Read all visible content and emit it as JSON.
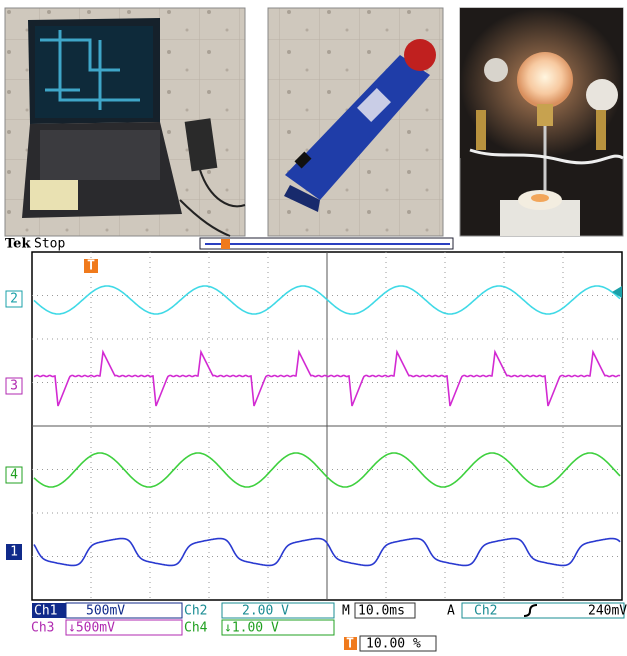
{
  "header": {
    "brand": "Tek",
    "status": "Stop"
  },
  "markers": {
    "trigger": "T",
    "ch2": "2",
    "ch3": "3",
    "ch4": "4",
    "ch1": "1"
  },
  "readouts": {
    "ch1": {
      "label": "Ch1",
      "scale": "500mV"
    },
    "ch2": {
      "label": "Ch2",
      "scale": "2.00 V"
    },
    "ch3": {
      "label": "Ch3",
      "scale": "↓500mV"
    },
    "ch4": {
      "label": "Ch4",
      "scale": "↓1.00 V"
    },
    "timebase": {
      "label": "M",
      "value": "10.0ms"
    },
    "trigger": {
      "label": "A",
      "source": "Ch2",
      "level": "240mV"
    },
    "position": {
      "icon": "T",
      "value": "10.00 %"
    }
  }
}
